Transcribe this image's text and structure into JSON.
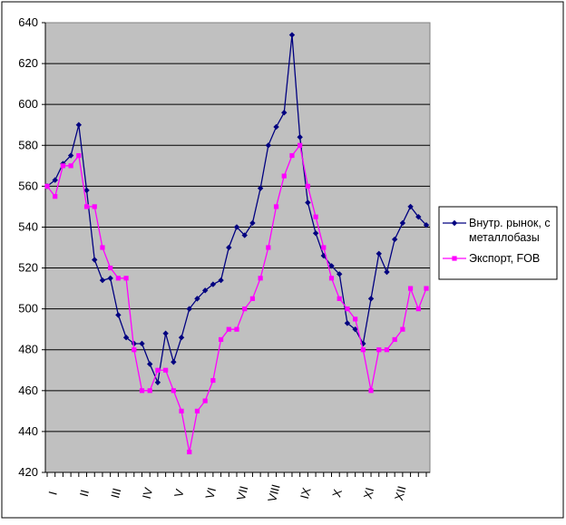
{
  "chart_data": {
    "type": "line",
    "title": "",
    "xlabel": "",
    "ylabel": "",
    "ylim": [
      420,
      640
    ],
    "yticks": [
      420,
      440,
      460,
      480,
      500,
      520,
      540,
      560,
      580,
      600,
      620,
      640
    ],
    "x_month_labels": [
      "I",
      "II",
      "III",
      "IV",
      "V",
      "VI",
      "VII",
      "VIII",
      "IX",
      "X",
      "XI",
      "XII"
    ],
    "grid": "horizontal",
    "legend_position": "right",
    "plot_background": "#c0c0c0",
    "series": [
      {
        "name": "Внутр. рынок, с металлобазы",
        "color": "#000080",
        "marker": "diamond",
        "values": [
          560,
          563,
          571,
          575,
          590,
          558,
          524,
          514,
          515,
          497,
          486,
          483,
          483,
          473,
          464,
          488,
          474,
          486,
          500,
          505,
          509,
          512,
          514,
          530,
          540,
          536,
          542,
          559,
          580,
          589,
          596,
          634,
          584,
          552,
          537,
          526,
          521,
          517,
          493,
          490,
          483,
          505,
          527,
          518,
          534,
          542,
          550,
          545,
          541
        ]
      },
      {
        "name": "Экспорт, FOB",
        "color": "#ff00ff",
        "marker": "square",
        "values": [
          560,
          555,
          570,
          570,
          575,
          550,
          550,
          530,
          520,
          515,
          515,
          480,
          460,
          460,
          470,
          470,
          460,
          450,
          430,
          450,
          455,
          465,
          485,
          490,
          490,
          500,
          505,
          515,
          530,
          550,
          565,
          575,
          580,
          560,
          545,
          530,
          515,
          505,
          500,
          495,
          480,
          460,
          480,
          480,
          485,
          490,
          510,
          500,
          510
        ]
      }
    ]
  }
}
